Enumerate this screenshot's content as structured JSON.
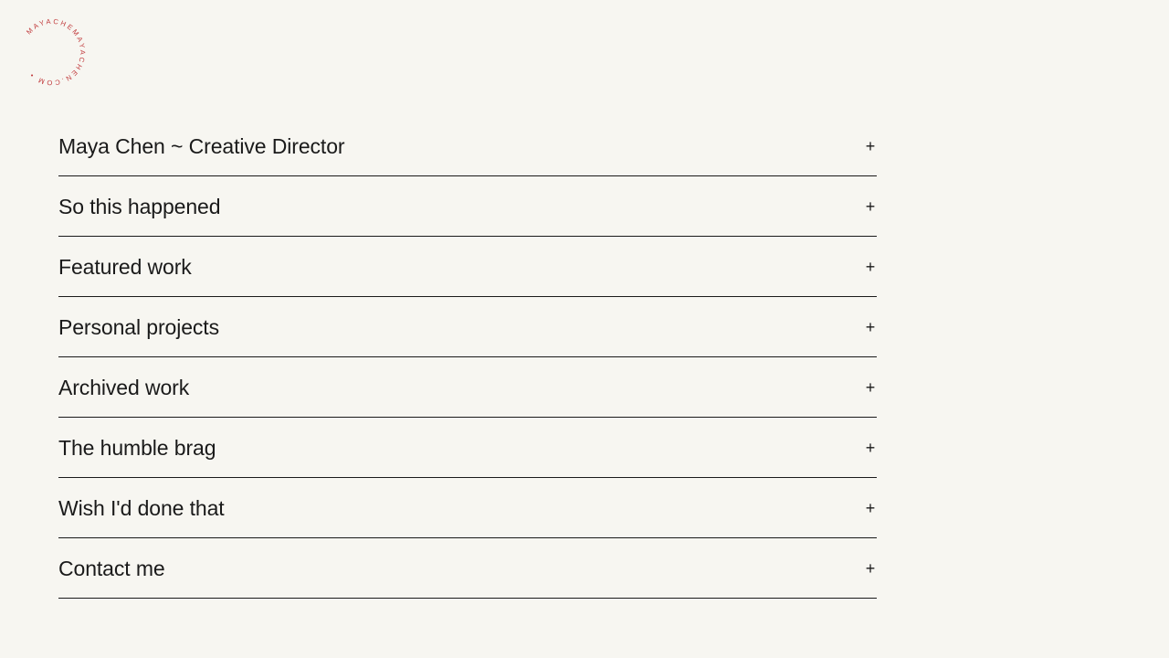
{
  "logo": {
    "text": "MAYACHEMAYACHEN.COM • ",
    "color": "#c0393b"
  },
  "accordion": {
    "items": [
      {
        "label": "Maya Chen ~ Creative Director",
        "icon": "+"
      },
      {
        "label": "So this happened",
        "icon": "+"
      },
      {
        "label": "Featured work",
        "icon": "+"
      },
      {
        "label": "Personal projects",
        "icon": "+"
      },
      {
        "label": "Archived work",
        "icon": "+"
      },
      {
        "label": "The humble brag",
        "icon": "+"
      },
      {
        "label": "Wish I'd done that",
        "icon": "+"
      },
      {
        "label": "Contact me",
        "icon": "+"
      }
    ]
  }
}
